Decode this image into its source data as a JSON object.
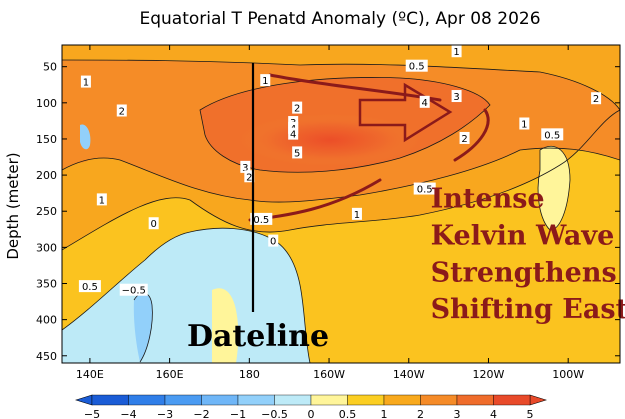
{
  "chart_data": {
    "type": "heatmap",
    "title": "Equatorial T Penatd Anomaly (ºC), Apr 08 2026",
    "ylabel": "Depth (meter)",
    "xlabel": "",
    "x_ticks": [
      {
        "label": "140E",
        "lon": 140
      },
      {
        "label": "160E",
        "lon": 160
      },
      {
        "label": "180",
        "lon": 180
      },
      {
        "label": "160W",
        "lon": 200
      },
      {
        "label": "140W",
        "lon": 220
      },
      {
        "label": "120W",
        "lon": 240
      },
      {
        "label": "100W",
        "lon": 260
      }
    ],
    "y_ticks": [
      {
        "label": "50",
        "depth": 50
      },
      {
        "label": "100",
        "depth": 100
      },
      {
        "label": "150",
        "depth": 150
      },
      {
        "label": "200",
        "depth": 200
      },
      {
        "label": "250",
        "depth": 250
      },
      {
        "label": "300",
        "depth": 300
      },
      {
        "label": "350",
        "depth": 350
      },
      {
        "label": "400",
        "depth": 400
      },
      {
        "label": "450",
        "depth": 450
      }
    ],
    "xlim": [
      133,
      273
    ],
    "ylim": [
      460,
      20
    ],
    "colorbar": {
      "labels": [
        "−5",
        "−4",
        "−3",
        "−2",
        "−1",
        "−0.5",
        "0",
        "0.5",
        "1",
        "2",
        "3",
        "4",
        "5"
      ],
      "colors": [
        "#1a5cd6",
        "#2f7ee8",
        "#4a9bf2",
        "#6fb6f7",
        "#92d0fa",
        "#bdeaf7",
        "#fff59a",
        "#fbce22",
        "#f8a91d",
        "#f58b28",
        "#ef6c2b",
        "#e84a2a"
      ]
    },
    "contour_labels": [
      {
        "text": "1",
        "lon": 139,
        "depth": 72
      },
      {
        "text": "2",
        "lon": 148,
        "depth": 112
      },
      {
        "text": "1",
        "lon": 143,
        "depth": 235
      },
      {
        "text": "0",
        "lon": 156,
        "depth": 268
      },
      {
        "text": "0.5",
        "lon": 140,
        "depth": 355
      },
      {
        "text": "−0.5",
        "lon": 151,
        "depth": 360
      },
      {
        "text": "1",
        "lon": 184,
        "depth": 70
      },
      {
        "text": "2",
        "lon": 192,
        "depth": 108
      },
      {
        "text": "3",
        "lon": 191,
        "depth": 128
      },
      {
        "text": "4",
        "lon": 191,
        "depth": 136
      },
      {
        "text": "4",
        "lon": 191,
        "depth": 144
      },
      {
        "text": "5",
        "lon": 192,
        "depth": 170
      },
      {
        "text": "3",
        "lon": 179,
        "depth": 190
      },
      {
        "text": "2",
        "lon": 180,
        "depth": 203
      },
      {
        "text": "0.5",
        "lon": 183,
        "depth": 262
      },
      {
        "text": "0",
        "lon": 186,
        "depth": 292
      },
      {
        "text": "0.5",
        "lon": 222,
        "depth": 50
      },
      {
        "text": "1",
        "lon": 232,
        "depth": 30
      },
      {
        "text": "4",
        "lon": 224,
        "depth": 100
      },
      {
        "text": "3",
        "lon": 232,
        "depth": 92
      },
      {
        "text": "2",
        "lon": 234,
        "depth": 150
      },
      {
        "text": "1",
        "lon": 249,
        "depth": 130
      },
      {
        "text": "0.5",
        "lon": 256,
        "depth": 145
      },
      {
        "text": "2",
        "lon": 267,
        "depth": 95
      },
      {
        "text": "1",
        "lon": 207,
        "depth": 255
      },
      {
        "text": "0.5",
        "lon": 224,
        "depth": 220
      }
    ],
    "annotations": [
      {
        "text": "Intense",
        "lon": 225,
        "depth": 245
      },
      {
        "text": "Kelvin Wave",
        "lon": 225,
        "depth": 296
      },
      {
        "text": "Strengthens",
        "lon": 225,
        "depth": 347
      },
      {
        "text": "Shifting East",
        "lon": 225,
        "depth": 398
      }
    ],
    "dateline_label": "Dateline"
  }
}
